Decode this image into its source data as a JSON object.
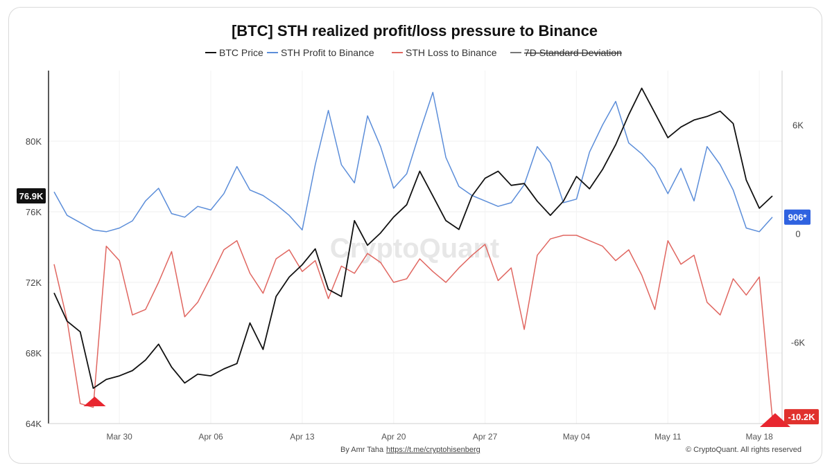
{
  "chart_data": {
    "type": "line",
    "title": "[BTC] STH realized profit/loss pressure to Binance",
    "x_start": "Mar 25",
    "x_end": "May 19",
    "x_ticks": [
      "Mar 30",
      "Apr 06",
      "Apr 13",
      "Apr 20",
      "Apr 27",
      "May 04",
      "May 11",
      "May 18"
    ],
    "y_left": {
      "min": 64000,
      "max": 84000,
      "ticks": [
        "64K",
        "68K",
        "72K",
        "76K",
        "80K"
      ],
      "tick_values": [
        64000,
        68000,
        72000,
        76000,
        80000
      ]
    },
    "y_right": {
      "min": -10500,
      "max": 9000,
      "ticks": [
        "-6K",
        "0",
        "6K"
      ],
      "tick_values": [
        -6000,
        0,
        6000
      ]
    },
    "grid": true,
    "legend_position": "top",
    "series": [
      {
        "name": "BTC Price",
        "axis": "left",
        "color": "#111111",
        "points": [
          [
            "Mar 25",
            71400
          ],
          [
            "Mar 26",
            69800
          ],
          [
            "Mar 27",
            69200
          ],
          [
            "Mar 28",
            66000
          ],
          [
            "Mar 29",
            66500
          ],
          [
            "Mar 30",
            66700
          ],
          [
            "Mar 31",
            67000
          ],
          [
            "Apr 01",
            67600
          ],
          [
            "Apr 02",
            68500
          ],
          [
            "Apr 03",
            67200
          ],
          [
            "Apr 04",
            66300
          ],
          [
            "Apr 05",
            66800
          ],
          [
            "Apr 06",
            66700
          ],
          [
            "Apr 07",
            67100
          ],
          [
            "Apr 08",
            67400
          ],
          [
            "Apr 09",
            69700
          ],
          [
            "Apr 10",
            68200
          ],
          [
            "Apr 11",
            71200
          ],
          [
            "Apr 12",
            72300
          ],
          [
            "Apr 13",
            73000
          ],
          [
            "Apr 14",
            73900
          ],
          [
            "Apr 15",
            71600
          ],
          [
            "Apr 16",
            71200
          ],
          [
            "Apr 17",
            75500
          ],
          [
            "Apr 18",
            74100
          ],
          [
            "Apr 19",
            74800
          ],
          [
            "Apr 20",
            75700
          ],
          [
            "Apr 21",
            76400
          ],
          [
            "Apr 22",
            78300
          ],
          [
            "Apr 23",
            76900
          ],
          [
            "Apr 24",
            75500
          ],
          [
            "Apr 25",
            75000
          ],
          [
            "Apr 26",
            76900
          ],
          [
            "Apr 27",
            77900
          ],
          [
            "Apr 28",
            78300
          ],
          [
            "Apr 29",
            77500
          ],
          [
            "Apr 30",
            77600
          ],
          [
            "May 01",
            76600
          ],
          [
            "May 02",
            75800
          ],
          [
            "May 03",
            76600
          ],
          [
            "May 04",
            78000
          ],
          [
            "May 05",
            77300
          ],
          [
            "May 06",
            78400
          ],
          [
            "May 07",
            79800
          ],
          [
            "May 08",
            81500
          ],
          [
            "May 09",
            83000
          ],
          [
            "May 10",
            81600
          ],
          [
            "May 11",
            80200
          ],
          [
            "May 12",
            80800
          ],
          [
            "May 13",
            81200
          ],
          [
            "May 14",
            81400
          ],
          [
            "May 15",
            81700
          ],
          [
            "May 16",
            81000
          ],
          [
            "May 17",
            77800
          ],
          [
            "May 18",
            76200
          ],
          [
            "May 19",
            76900
          ]
        ]
      },
      {
        "name": "STH Profit to Binance",
        "axis": "right",
        "color": "#5b8dd9",
        "points": [
          [
            "Mar 25",
            2300
          ],
          [
            "Mar 26",
            1000
          ],
          [
            "Mar 27",
            600
          ],
          [
            "Mar 28",
            200
          ],
          [
            "Mar 29",
            100
          ],
          [
            "Mar 30",
            300
          ],
          [
            "Mar 31",
            700
          ],
          [
            "Apr 01",
            1800
          ],
          [
            "Apr 02",
            2500
          ],
          [
            "Apr 03",
            1100
          ],
          [
            "Apr 04",
            900
          ],
          [
            "Apr 05",
            1500
          ],
          [
            "Apr 06",
            1300
          ],
          [
            "Apr 07",
            2200
          ],
          [
            "Apr 08",
            3700
          ],
          [
            "Apr 09",
            2400
          ],
          [
            "Apr 10",
            2100
          ],
          [
            "Apr 11",
            1600
          ],
          [
            "Apr 12",
            1000
          ],
          [
            "Apr 13",
            200
          ],
          [
            "Apr 14",
            3800
          ],
          [
            "Apr 15",
            6800
          ],
          [
            "Apr 16",
            3800
          ],
          [
            "Apr 17",
            2800
          ],
          [
            "Apr 18",
            6500
          ],
          [
            "Apr 19",
            4800
          ],
          [
            "Apr 20",
            2500
          ],
          [
            "Apr 21",
            3300
          ],
          [
            "Apr 22",
            5600
          ],
          [
            "Apr 23",
            7800
          ],
          [
            "Apr 24",
            4200
          ],
          [
            "Apr 25",
            2600
          ],
          [
            "Apr 26",
            2100
          ],
          [
            "Apr 27",
            1800
          ],
          [
            "Apr 28",
            1500
          ],
          [
            "Apr 29",
            1700
          ],
          [
            "Apr 30",
            2700
          ],
          [
            "May 01",
            4800
          ],
          [
            "May 02",
            3900
          ],
          [
            "May 03",
            1700
          ],
          [
            "May 04",
            1900
          ],
          [
            "May 05",
            4500
          ],
          [
            "May 06",
            6000
          ],
          [
            "May 07",
            7300
          ],
          [
            "May 08",
            5000
          ],
          [
            "May 09",
            4400
          ],
          [
            "May 10",
            3600
          ],
          [
            "May 11",
            2200
          ],
          [
            "May 12",
            3600
          ],
          [
            "May 13",
            1800
          ],
          [
            "May 14",
            4800
          ],
          [
            "May 15",
            3800
          ],
          [
            "May 16",
            2400
          ],
          [
            "May 17",
            300
          ],
          [
            "May 18",
            100
          ],
          [
            "May 19",
            906
          ]
        ]
      },
      {
        "name": "STH Loss to Binance",
        "axis": "right",
        "color": "#e06660",
        "points": [
          [
            "Mar 25",
            -1700
          ],
          [
            "Mar 26",
            -4800
          ],
          [
            "Mar 27",
            -9400
          ],
          [
            "Mar 28",
            -9600
          ],
          [
            "Mar 29",
            -700
          ],
          [
            "Mar 30",
            -1500
          ],
          [
            "Mar 31",
            -4500
          ],
          [
            "Apr 01",
            -4200
          ],
          [
            "Apr 02",
            -2700
          ],
          [
            "Apr 03",
            -1000
          ],
          [
            "Apr 04",
            -4600
          ],
          [
            "Apr 05",
            -3800
          ],
          [
            "Apr 06",
            -2400
          ],
          [
            "Apr 07",
            -900
          ],
          [
            "Apr 08",
            -400
          ],
          [
            "Apr 09",
            -2200
          ],
          [
            "Apr 10",
            -3300
          ],
          [
            "Apr 11",
            -1400
          ],
          [
            "Apr 12",
            -900
          ],
          [
            "Apr 13",
            -2100
          ],
          [
            "Apr 14",
            -1500
          ],
          [
            "Apr 15",
            -3600
          ],
          [
            "Apr 16",
            -1800
          ],
          [
            "Apr 17",
            -2200
          ],
          [
            "Apr 18",
            -1100
          ],
          [
            "Apr 19",
            -1600
          ],
          [
            "Apr 20",
            -2700
          ],
          [
            "Apr 21",
            -2500
          ],
          [
            "Apr 22",
            -1400
          ],
          [
            "Apr 23",
            -2100
          ],
          [
            "Apr 24",
            -2700
          ],
          [
            "Apr 25",
            -1900
          ],
          [
            "Apr 26",
            -1200
          ],
          [
            "Apr 27",
            -600
          ],
          [
            "Apr 28",
            -2600
          ],
          [
            "Apr 29",
            -1900
          ],
          [
            "Apr 30",
            -5300
          ],
          [
            "May 01",
            -1200
          ],
          [
            "May 02",
            -300
          ],
          [
            "May 03",
            -100
          ],
          [
            "May 04",
            -100
          ],
          [
            "May 05",
            -400
          ],
          [
            "May 06",
            -700
          ],
          [
            "May 07",
            -1500
          ],
          [
            "May 08",
            -900
          ],
          [
            "May 09",
            -2300
          ],
          [
            "May 10",
            -4200
          ],
          [
            "May 11",
            -400
          ],
          [
            "May 12",
            -1700
          ],
          [
            "May 13",
            -1200
          ],
          [
            "May 14",
            -3800
          ],
          [
            "May 15",
            -4500
          ],
          [
            "May 16",
            -2500
          ],
          [
            "May 17",
            -3400
          ],
          [
            "May 18",
            -2400
          ],
          [
            "May 19",
            -10200
          ]
        ]
      },
      {
        "name": "7D Standard Deviation",
        "axis": "right",
        "color": "#777777",
        "hidden": true,
        "points": []
      }
    ]
  },
  "badges": {
    "price_current": "76.9K",
    "profit_current": "906*",
    "loss_current": "-10.2K"
  },
  "watermark": "CryptoQuant",
  "footer": {
    "author_prefix": "By Amr Taha",
    "author_link": "https://t.me/cryptohisenberg",
    "copyright": "© CryptoQuant. All rights reserved"
  },
  "colors": {
    "price": "#111111",
    "profit": "#5b8dd9",
    "loss": "#e06660",
    "marker": "#e8262f",
    "badge_profit_bg": "#2f62e0",
    "badge_loss_bg": "#e0312d",
    "badge_price_bg": "#111111"
  }
}
